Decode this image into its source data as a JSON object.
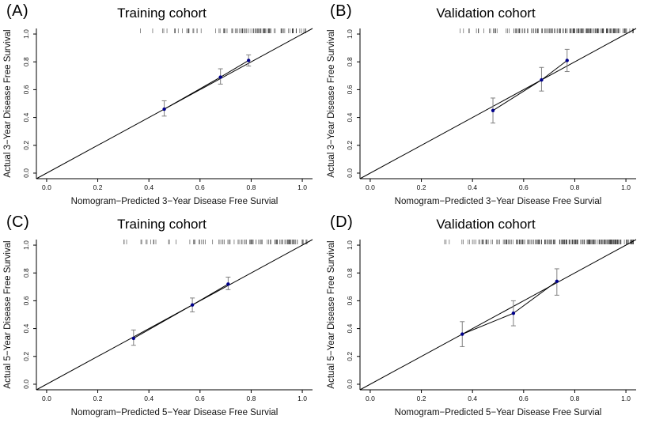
{
  "page": {
    "background": "#ffffff"
  },
  "chart_data": [
    {
      "type": "scatter",
      "panel_label": "(A)",
      "title": "Training cohort",
      "xlabel": "Nomogram−Predicted 3−Year Disease Free Survial",
      "ylabel": "Actual 3−Year Disease Free Survival",
      "xlim": [
        0,
        1
      ],
      "ylim": [
        0,
        1
      ],
      "xticks": [
        0,
        0.2,
        0.4,
        0.6,
        0.8,
        1
      ],
      "yticks": [
        0,
        0.2,
        0.4,
        0.6,
        0.8,
        1
      ],
      "diagonal_line": true,
      "points": {
        "x": [
          0.46,
          0.68,
          0.79
        ],
        "y": [
          0.46,
          0.69,
          0.81
        ],
        "y_lo": [
          0.41,
          0.64,
          0.77
        ],
        "y_hi": [
          0.52,
          0.75,
          0.85
        ]
      },
      "rug": {
        "count": 100,
        "min": 0.3,
        "max": 1.02,
        "bias": 0.5,
        "seed": 11
      },
      "point_color": "#00008B",
      "line_color": "#000000",
      "errbar_color": "#808080",
      "rug_color": "#444444",
      "axis_color": "#000000"
    },
    {
      "type": "scatter",
      "panel_label": "(B)",
      "title": "Validation cohort",
      "xlabel": "Nomogram−Predicted 3−Year Disease Free Survial",
      "ylabel": "Actual 3−Year Disease Free Survival",
      "xlim": [
        0,
        1
      ],
      "ylim": [
        0,
        1
      ],
      "xticks": [
        0,
        0.2,
        0.4,
        0.6,
        0.8,
        1
      ],
      "yticks": [
        0,
        0.2,
        0.4,
        0.6,
        0.8,
        1
      ],
      "diagonal_line": true,
      "points": {
        "x": [
          0.48,
          0.67,
          0.77
        ],
        "y": [
          0.45,
          0.67,
          0.81
        ],
        "y_lo": [
          0.36,
          0.59,
          0.73
        ],
        "y_hi": [
          0.54,
          0.76,
          0.89
        ]
      },
      "rug": {
        "count": 180,
        "min": 0.3,
        "max": 1.03,
        "bias": 0.45,
        "seed": 22
      },
      "point_color": "#00008B",
      "line_color": "#000000",
      "errbar_color": "#808080",
      "rug_color": "#444444",
      "axis_color": "#000000"
    },
    {
      "type": "scatter",
      "panel_label": "(C)",
      "title": "Training cohort",
      "xlabel": "Nomogram−Predicted 5−Year Disease Free Survial",
      "ylabel": "Actual 5−Year Disease Free Survival",
      "xlim": [
        0,
        1
      ],
      "ylim": [
        0,
        1
      ],
      "xticks": [
        0,
        0.2,
        0.4,
        0.6,
        0.8,
        1
      ],
      "yticks": [
        0,
        0.2,
        0.4,
        0.6,
        0.8,
        1
      ],
      "diagonal_line": true,
      "points": {
        "x": [
          0.34,
          0.57,
          0.71
        ],
        "y": [
          0.33,
          0.57,
          0.72
        ],
        "y_lo": [
          0.28,
          0.52,
          0.68
        ],
        "y_hi": [
          0.39,
          0.62,
          0.77
        ]
      },
      "rug": {
        "count": 100,
        "min": 0.22,
        "max": 1.02,
        "bias": 0.55,
        "seed": 33
      },
      "point_color": "#00008B",
      "line_color": "#000000",
      "errbar_color": "#808080",
      "rug_color": "#444444",
      "axis_color": "#000000"
    },
    {
      "type": "scatter",
      "panel_label": "(D)",
      "title": "Validation cohort",
      "xlabel": "Nomogram−Predicted 5−Year Disease Free Survial",
      "ylabel": "Actual 5−Year Disease Free Survival",
      "xlim": [
        0,
        1
      ],
      "ylim": [
        0,
        1
      ],
      "xticks": [
        0,
        0.2,
        0.4,
        0.6,
        0.8,
        1
      ],
      "yticks": [
        0,
        0.2,
        0.4,
        0.6,
        0.8,
        1
      ],
      "diagonal_line": true,
      "points": {
        "x": [
          0.36,
          0.56,
          0.73
        ],
        "y": [
          0.36,
          0.51,
          0.74
        ],
        "y_lo": [
          0.27,
          0.42,
          0.64
        ],
        "y_hi": [
          0.45,
          0.6,
          0.83
        ]
      },
      "rug": {
        "count": 230,
        "min": 0.22,
        "max": 1.03,
        "bias": 0.5,
        "seed": 44
      },
      "point_color": "#00008B",
      "line_color": "#000000",
      "errbar_color": "#808080",
      "rug_color": "#444444",
      "axis_color": "#000000"
    }
  ]
}
